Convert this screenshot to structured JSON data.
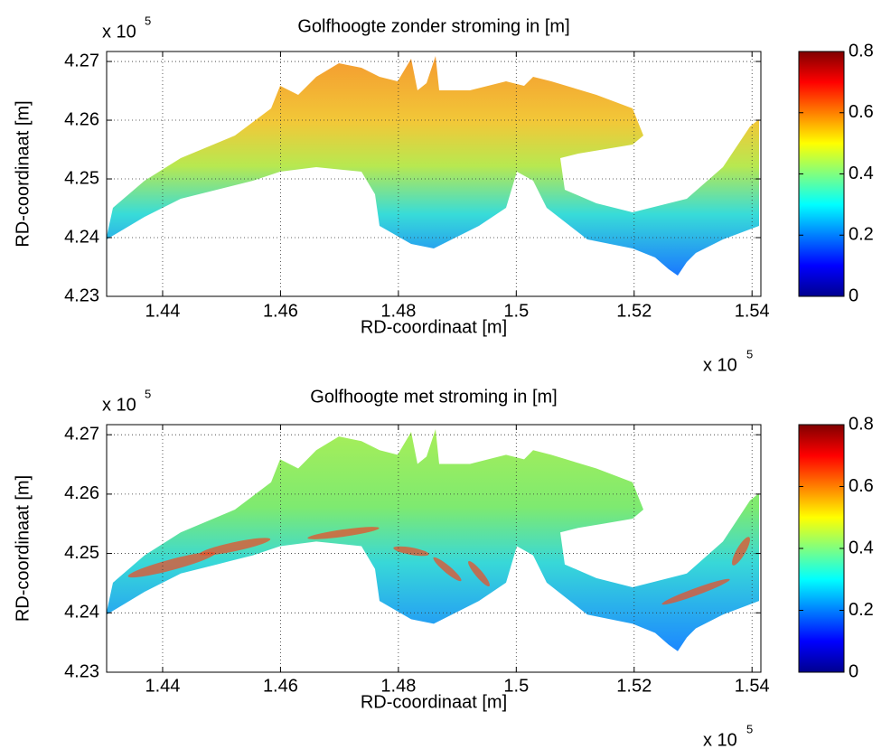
{
  "chart_data": [
    {
      "type": "heatmap",
      "title": "Golfhoogte zonder stroming in [m]",
      "xlabel": "RD-coordinaat [m]",
      "ylabel": "RD-coordinaat [m]",
      "x_multiplier": "x 10",
      "x_multiplier_power": "5",
      "y_multiplier": "x 10",
      "y_multiplier_power": "5",
      "xlim": [
        1.4305,
        1.5415
      ],
      "xticks": [
        1.44,
        1.46,
        1.48,
        1.5,
        1.52,
        1.54
      ],
      "ylim": [
        4.23,
        4.2717
      ],
      "yticks": [
        4.23,
        4.24,
        4.25,
        4.26,
        4.27
      ],
      "clim": [
        0,
        0.8
      ],
      "cticks": [
        0,
        0.2,
        0.4,
        0.6,
        0.8
      ],
      "grid": true,
      "colormap": "jet"
    },
    {
      "type": "heatmap",
      "title": "Golfhoogte met stroming in [m]",
      "xlabel": "RD-coordinaat [m]",
      "ylabel": "RD-coordinaat [m]",
      "x_multiplier": "x 10",
      "x_multiplier_power": "5",
      "y_multiplier": "x 10",
      "y_multiplier_power": "5",
      "xlim": [
        1.4305,
        1.5415
      ],
      "xticks": [
        1.44,
        1.46,
        1.48,
        1.5,
        1.52,
        1.54
      ],
      "ylim": [
        4.23,
        4.2717
      ],
      "yticks": [
        4.23,
        4.24,
        4.25,
        4.26,
        4.27
      ],
      "clim": [
        0,
        0.8
      ],
      "cticks": [
        0,
        0.2,
        0.4,
        0.6,
        0.8
      ],
      "grid": true,
      "colormap": "jet"
    }
  ]
}
